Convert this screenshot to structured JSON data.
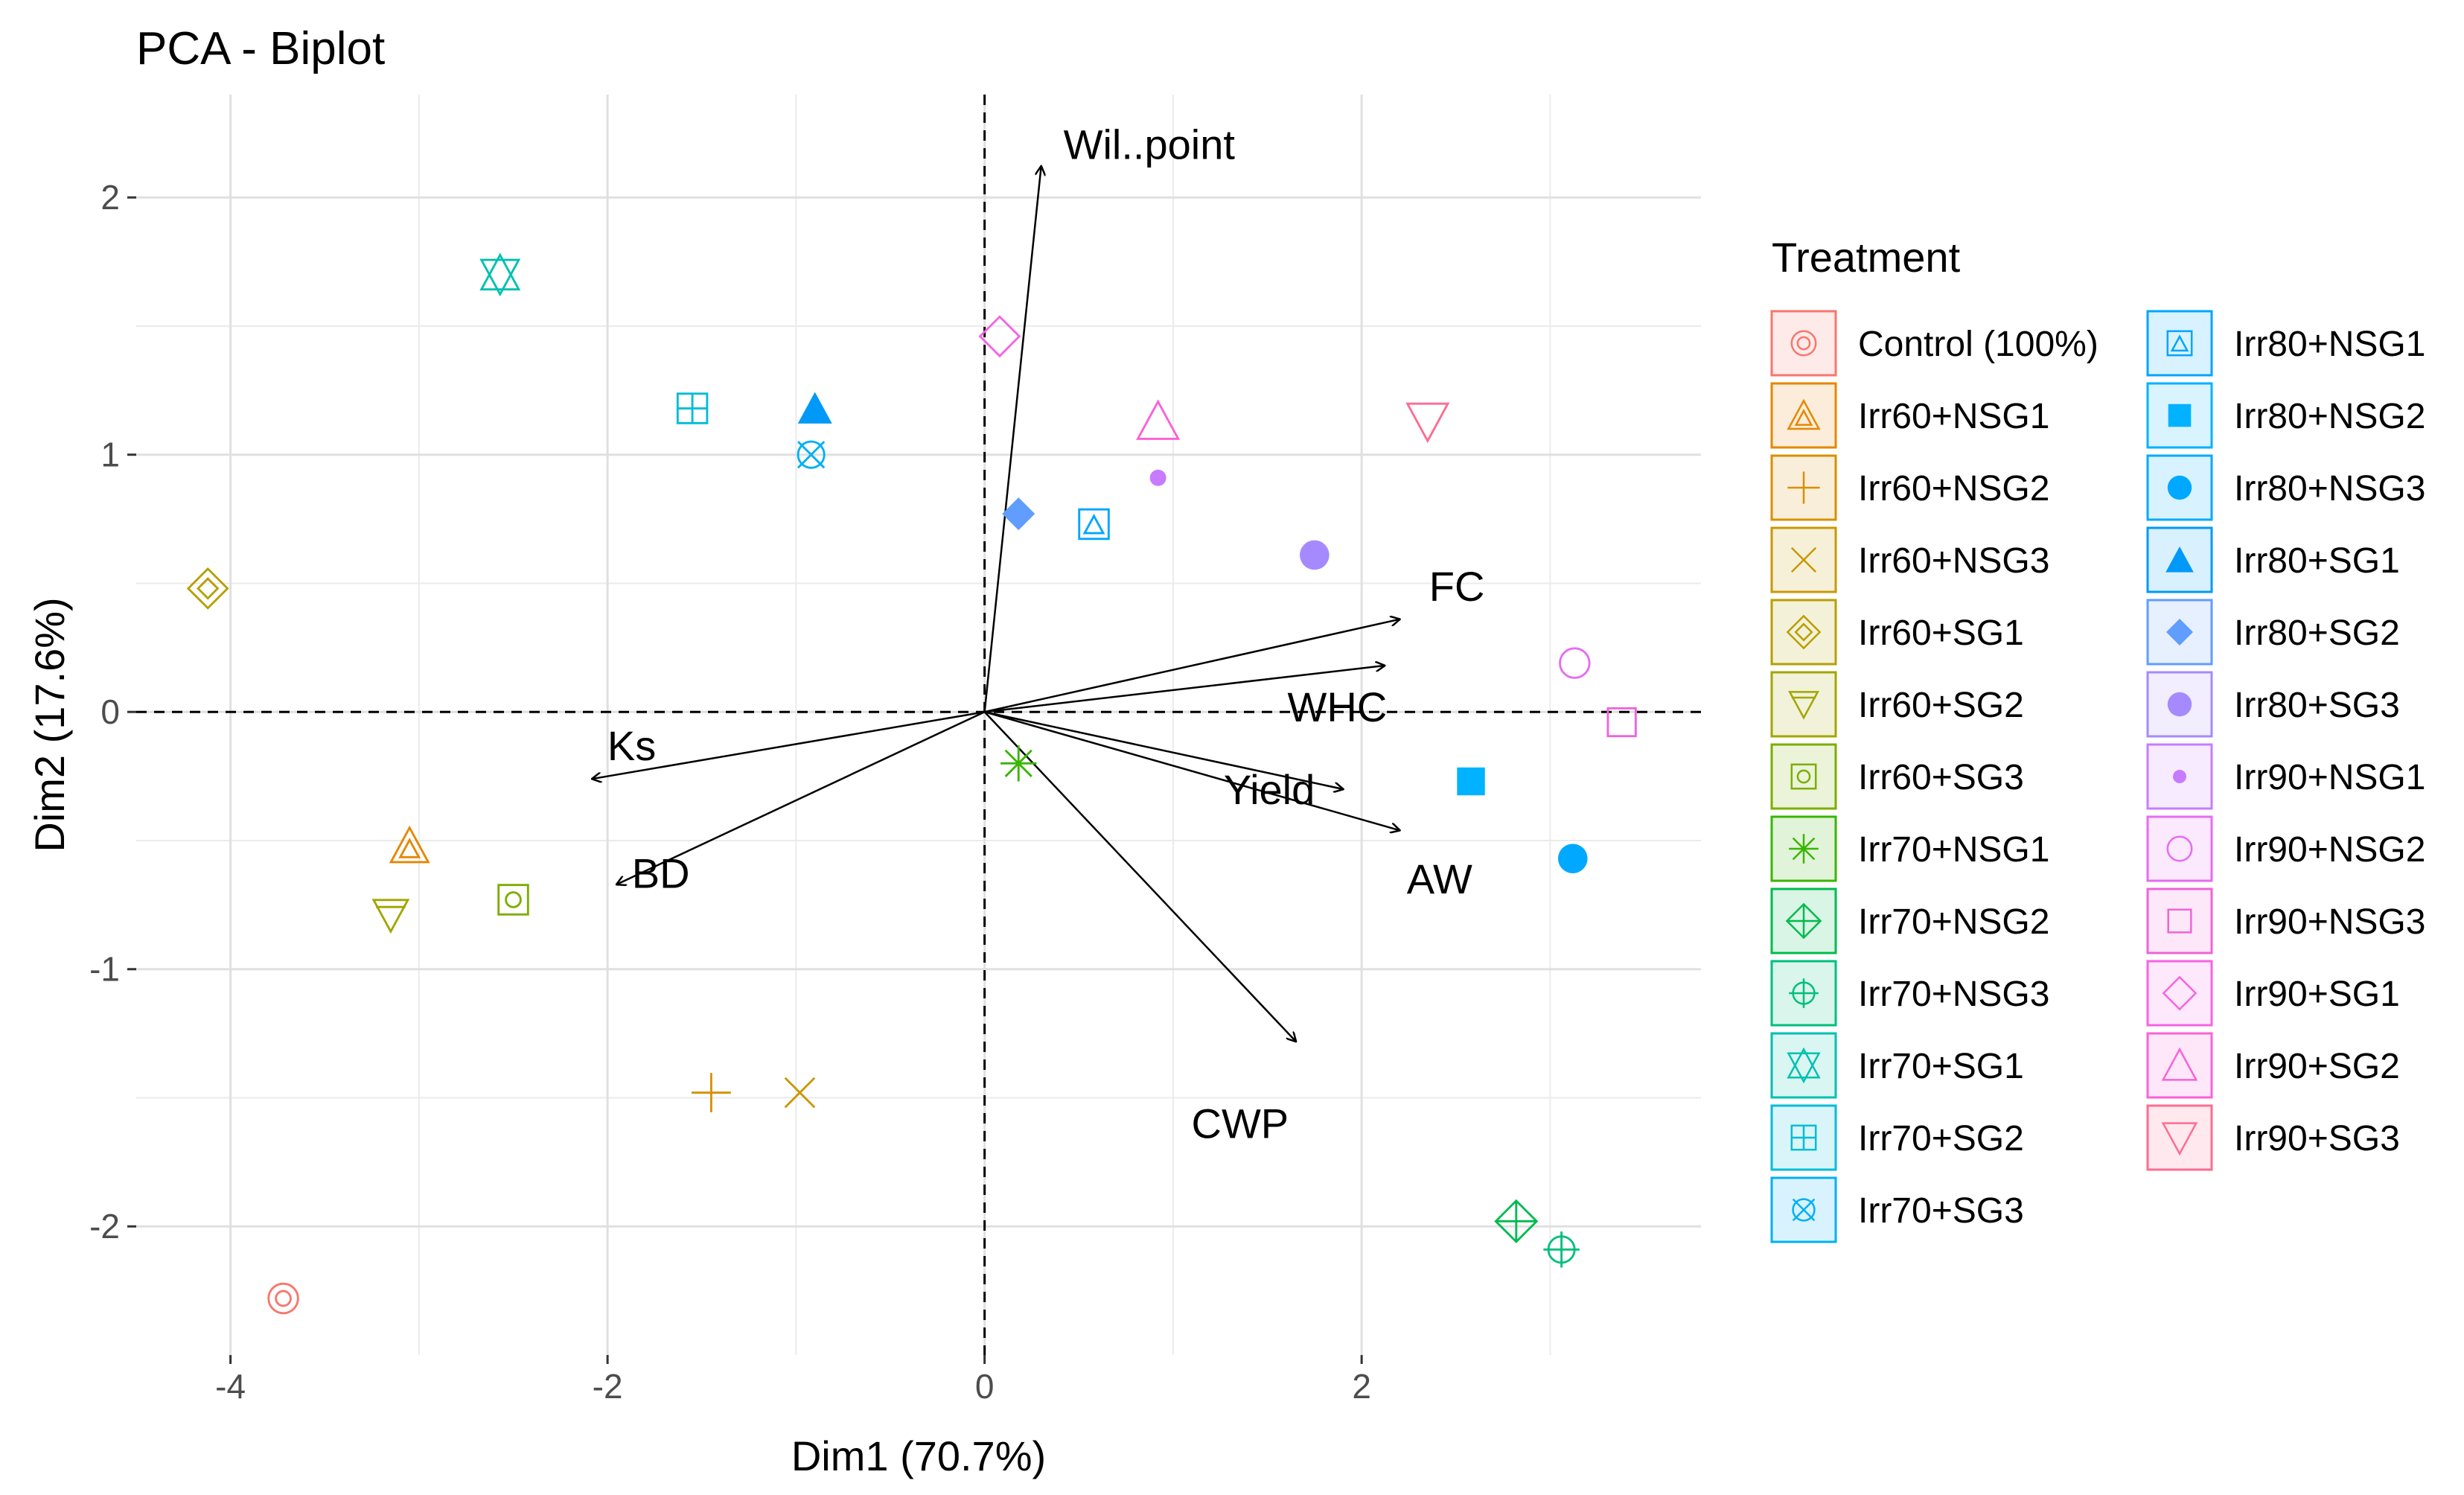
{
  "chart_data": {
    "type": "scatter",
    "subtype": "pca-biplot",
    "title": "PCA - Biplot",
    "xlabel": "Dim1 (70.7%)",
    "ylabel": "Dim2 (17.6%)",
    "xlim": [
      -4.5,
      3.8
    ],
    "ylim": [
      -2.5,
      2.4
    ],
    "xticks": [
      -4,
      -2,
      0,
      2
    ],
    "yticks": [
      -2,
      -1,
      0,
      1,
      2
    ],
    "xtick_labels": [
      "-4",
      "-2",
      "0",
      "2"
    ],
    "ytick_labels": [
      "-2",
      "-1",
      "0",
      "1",
      "2"
    ],
    "grid": true,
    "reference_lines": {
      "x": 0,
      "y": 0,
      "style": "dashed"
    },
    "legend": {
      "title": "Treatment",
      "position": "right"
    },
    "series": [
      {
        "name": "Control (100%)",
        "color": "#F8766D",
        "shape": "circle-double",
        "points": [
          [
            -3.72,
            -2.28
          ]
        ]
      },
      {
        "name": "Irr60+NSG1",
        "color": "#E58700",
        "shape": "triangle-double",
        "points": [
          [
            -3.05,
            -0.52
          ]
        ]
      },
      {
        "name": "Irr60+NSG2",
        "color": "#D89000",
        "shape": "plus",
        "points": [
          [
            -1.45,
            -1.48
          ]
        ]
      },
      {
        "name": "Irr60+NSG3",
        "color": "#C99800",
        "shape": "cross",
        "points": [
          [
            -0.98,
            -1.48
          ]
        ]
      },
      {
        "name": "Irr60+SG1",
        "color": "#B79F00",
        "shape": "diamond-double",
        "points": [
          [
            -4.12,
            0.48
          ]
        ]
      },
      {
        "name": "Irr60+SG2",
        "color": "#A3A500",
        "shape": "triangle-down-line",
        "points": [
          [
            -3.15,
            -0.79
          ]
        ]
      },
      {
        "name": "Irr60+SG3",
        "color": "#7CAE00",
        "shape": "square-circle",
        "points": [
          [
            -2.5,
            -0.73
          ]
        ]
      },
      {
        "name": "Irr70+NSG1",
        "color": "#39B600",
        "shape": "asterisk",
        "points": [
          [
            0.18,
            -0.2
          ]
        ]
      },
      {
        "name": "Irr70+NSG2",
        "color": "#00BB4E",
        "shape": "diamond-plus",
        "points": [
          [
            2.82,
            -1.98
          ]
        ]
      },
      {
        "name": "Irr70+NSG3",
        "color": "#00BF7D",
        "shape": "circle-plus",
        "points": [
          [
            3.06,
            -2.09
          ]
        ]
      },
      {
        "name": "Irr70+SG1",
        "color": "#00C0AF",
        "shape": "star-david",
        "points": [
          [
            -2.57,
            1.7
          ]
        ]
      },
      {
        "name": "Irr70+SG2",
        "color": "#00BCD8",
        "shape": "square-plus",
        "points": [
          [
            -1.55,
            1.18
          ]
        ]
      },
      {
        "name": "Irr70+SG3",
        "color": "#00B0F6",
        "shape": "circle-cross",
        "points": [
          [
            -0.92,
            1.0
          ]
        ]
      },
      {
        "name": "Irr80+NSG1",
        "color": "#00A5FF",
        "shape": "square-triangle",
        "points": [
          [
            0.58,
            0.73
          ]
        ]
      },
      {
        "name": "Irr80+NSG2",
        "color": "#00B2FF",
        "shape": "square-filled",
        "points": [
          [
            2.58,
            -0.27
          ]
        ]
      },
      {
        "name": "Irr80+NSG3",
        "color": "#00A9FF",
        "shape": "circle-filled",
        "points": [
          [
            3.12,
            -0.57
          ]
        ]
      },
      {
        "name": "Irr80+SG1",
        "color": "#0099F8",
        "shape": "triangle-filled",
        "points": [
          [
            -0.9,
            1.18
          ]
        ]
      },
      {
        "name": "Irr80+SG2",
        "color": "#619CFF",
        "shape": "diamond-filled",
        "points": [
          [
            0.18,
            0.77
          ]
        ]
      },
      {
        "name": "Irr80+SG3",
        "color": "#A58AFF",
        "shape": "circle-filled",
        "points": [
          [
            1.75,
            0.61
          ]
        ]
      },
      {
        "name": "Irr90+NSG1",
        "color": "#C77CFF",
        "shape": "small-dot",
        "points": [
          [
            0.92,
            0.91
          ]
        ]
      },
      {
        "name": "Irr90+NSG2",
        "color": "#E76BF3",
        "shape": "circle-open",
        "points": [
          [
            3.13,
            0.19
          ]
        ]
      },
      {
        "name": "Irr90+NSG3",
        "color": "#F063D8",
        "shape": "square-open",
        "points": [
          [
            3.38,
            -0.04
          ]
        ]
      },
      {
        "name": "Irr90+SG1",
        "color": "#F564E3",
        "shape": "diamond-open",
        "points": [
          [
            0.08,
            1.46
          ]
        ]
      },
      {
        "name": "Irr90+SG2",
        "color": "#FB61D7",
        "shape": "triangle-open",
        "points": [
          [
            0.92,
            1.13
          ]
        ]
      },
      {
        "name": "Irr90+SG3",
        "color": "#FF6C91",
        "shape": "triangle-down-open",
        "points": [
          [
            2.35,
            1.13
          ]
        ]
      }
    ],
    "variables": [
      {
        "name": "Wil..point",
        "x": 0.3,
        "y": 2.12
      },
      {
        "name": "FC",
        "x": 2.2,
        "y": 0.36
      },
      {
        "name": "WHC",
        "x": 2.12,
        "y": 0.18
      },
      {
        "name": "Yield",
        "x": 1.9,
        "y": -0.3
      },
      {
        "name": "AW",
        "x": 2.2,
        "y": -0.46
      },
      {
        "name": "CWP",
        "x": 1.65,
        "y": -1.28
      },
      {
        "name": "Ks",
        "x": -2.08,
        "y": -0.26
      },
      {
        "name": "BD",
        "x": -1.95,
        "y": -0.67
      }
    ]
  }
}
